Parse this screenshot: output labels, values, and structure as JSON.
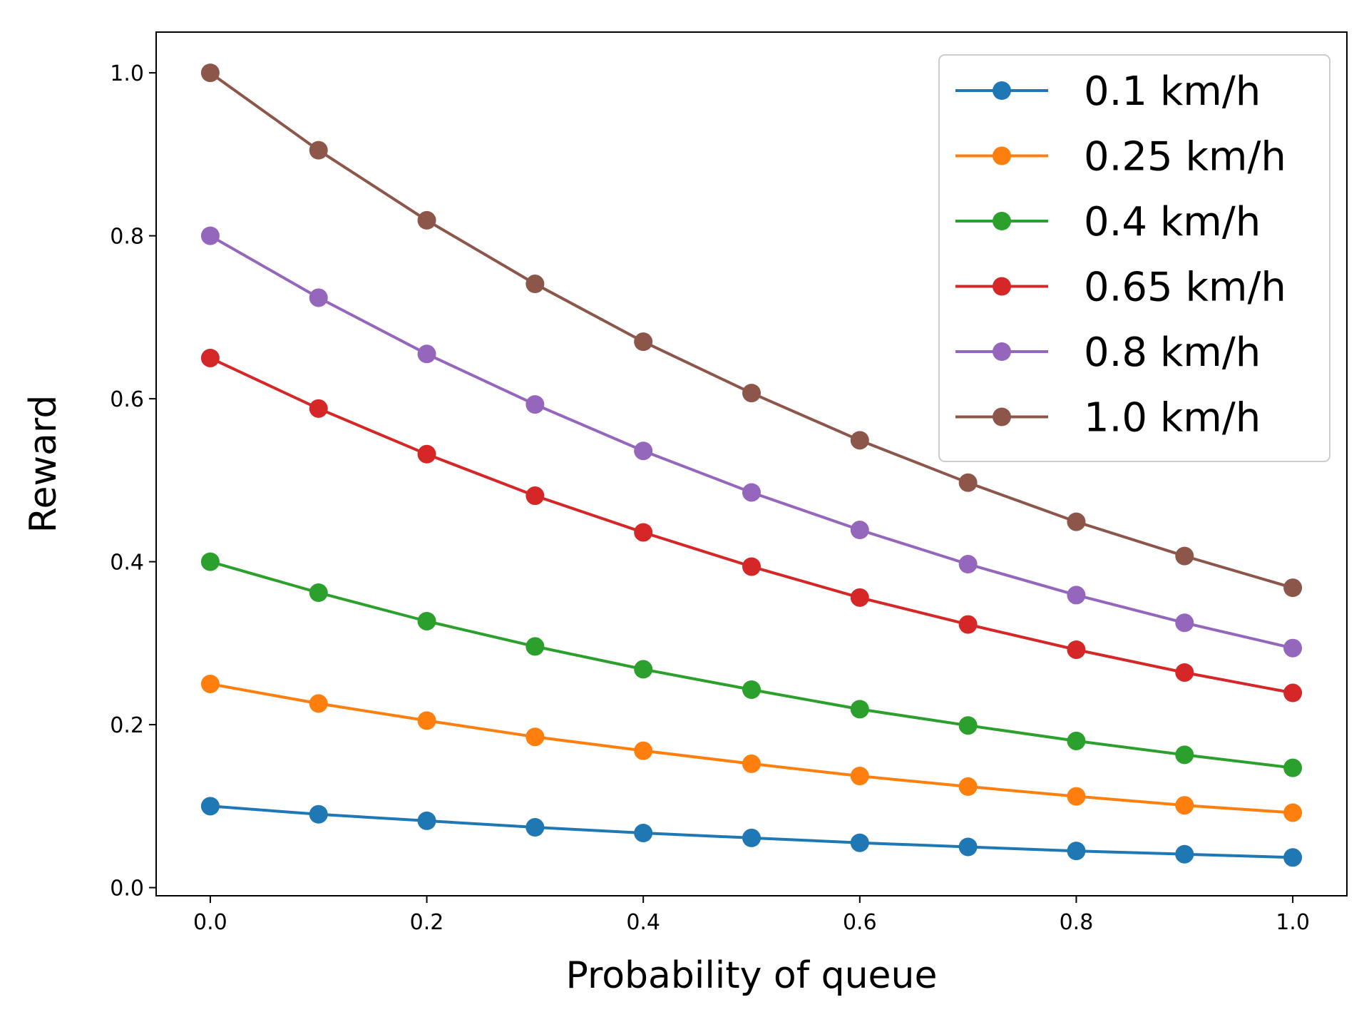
{
  "chart_data": {
    "type": "line",
    "title": "",
    "xlabel": "Probability of queue",
    "ylabel": "Reward",
    "xlim": [
      -0.05,
      1.05
    ],
    "ylim": [
      -0.01,
      1.05
    ],
    "xticks": [
      0.0,
      0.2,
      0.4,
      0.6,
      0.8,
      1.0
    ],
    "xtick_labels": [
      "0.0",
      "0.2",
      "0.4",
      "0.6",
      "0.8",
      "1.0"
    ],
    "yticks": [
      0.0,
      0.2,
      0.4,
      0.6,
      0.8,
      1.0
    ],
    "ytick_labels": [
      "0.0",
      "0.2",
      "0.4",
      "0.6",
      "0.8",
      "1.0"
    ],
    "grid": false,
    "legend_position": "top-right",
    "x": [
      0.0,
      0.1,
      0.2,
      0.3,
      0.4,
      0.5,
      0.6,
      0.7,
      0.8,
      0.9,
      1.0
    ],
    "series": [
      {
        "name": "0.1 km/h",
        "color": "#1f77b4",
        "values": [
          0.1,
          0.09,
          0.082,
          0.074,
          0.067,
          0.061,
          0.055,
          0.05,
          0.045,
          0.041,
          0.037
        ]
      },
      {
        "name": "0.25 km/h",
        "color": "#ff7f0e",
        "values": [
          0.25,
          0.226,
          0.205,
          0.185,
          0.168,
          0.152,
          0.137,
          0.124,
          0.112,
          0.101,
          0.092
        ]
      },
      {
        "name": "0.4 km/h",
        "color": "#2ca02c",
        "values": [
          0.4,
          0.362,
          0.327,
          0.296,
          0.268,
          0.243,
          0.219,
          0.199,
          0.18,
          0.163,
          0.147
        ]
      },
      {
        "name": "0.65 km/h",
        "color": "#d62728",
        "values": [
          0.65,
          0.588,
          0.532,
          0.481,
          0.436,
          0.394,
          0.356,
          0.323,
          0.292,
          0.264,
          0.239
        ]
      },
      {
        "name": "0.8 km/h",
        "color": "#9467bd",
        "values": [
          0.8,
          0.724,
          0.655,
          0.593,
          0.536,
          0.485,
          0.439,
          0.397,
          0.359,
          0.325,
          0.294
        ]
      },
      {
        "name": "1.0 km/h",
        "color": "#8c564b",
        "values": [
          1.0,
          0.905,
          0.819,
          0.741,
          0.67,
          0.607,
          0.549,
          0.497,
          0.449,
          0.407,
          0.368
        ]
      }
    ]
  }
}
